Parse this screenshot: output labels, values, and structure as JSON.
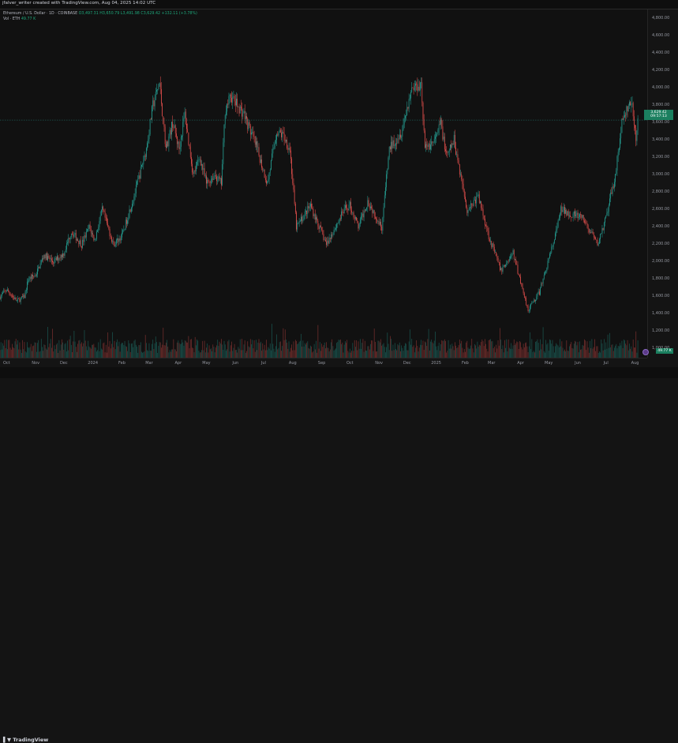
{
  "header": {
    "attribution": "jfalver_writer created with TradingView.com, Aug 04, 2025 14:02 UTC"
  },
  "legend": {
    "symbol": "Ethereum / U.S. Dollar · 1D · COINBASE",
    "ohlc": "O3,497.31 H3,650.79 L3,491.98 C3,629.42 +132.11 (+3.78%)",
    "volume_label": "Vol · ETH",
    "volume_value": "49.77 K"
  },
  "price_badge": {
    "price": "3,629.42",
    "countdown": "09:57:13"
  },
  "volume_badge": "49.77 K",
  "footer": {
    "logo": "TradingView"
  },
  "colors": {
    "up": "#26a69a",
    "down": "#ef5350",
    "badge": "#1b7f5f"
  },
  "chart_data": {
    "type": "candlestick",
    "symbol": "ETHUSD",
    "interval": "1D",
    "price_ylim": [
      900,
      4900
    ],
    "yticks": [
      1000,
      1200,
      1400,
      1600,
      1800,
      2000,
      2200,
      2400,
      2600,
      2800,
      3000,
      3200,
      3400,
      3600,
      3800,
      4000,
      4200,
      4400,
      4600,
      4800
    ],
    "ytick_labels": [
      "1,000.00",
      "1,200.00",
      "1,400.00",
      "1,600.00",
      "1,800.00",
      "2,000.00",
      "2,200.00",
      "2,400.00",
      "2,600.00",
      "2,800.00",
      "3,000.00",
      "3,200.00",
      "3,400.00",
      "3,600.00",
      "3,800.00",
      "4,000.00",
      "4,200.00",
      "4,400.00",
      "4,600.00",
      "4,800.00"
    ],
    "xtick_labels": [
      "Oct",
      "Nov",
      "Dec",
      "2024",
      "Feb",
      "Mar",
      "Apr",
      "May",
      "Jun",
      "Jul",
      "Aug",
      "Sep",
      "Oct",
      "Nov",
      "Dec",
      "2025",
      "Feb",
      "Mar",
      "Apr",
      "May",
      "Jun",
      "Jul",
      "Aug"
    ],
    "x_start": "2023-09-24",
    "x_end": "2025-08-14",
    "price_path": [
      [
        "2023-09-24",
        1600
      ],
      [
        "2023-10-01",
        1680
      ],
      [
        "2023-10-12",
        1550
      ],
      [
        "2023-10-20",
        1600
      ],
      [
        "2023-10-24",
        1800
      ],
      [
        "2023-11-01",
        1850
      ],
      [
        "2023-11-10",
        2080
      ],
      [
        "2023-11-20",
        2000
      ],
      [
        "2023-12-01",
        2100
      ],
      [
        "2023-12-09",
        2350
      ],
      [
        "2023-12-20",
        2200
      ],
      [
        "2023-12-28",
        2400
      ],
      [
        "2024-01-03",
        2250
      ],
      [
        "2024-01-11",
        2600
      ],
      [
        "2024-01-23",
        2200
      ],
      [
        "2024-02-01",
        2300
      ],
      [
        "2024-02-15",
        2800
      ],
      [
        "2024-02-27",
        3300
      ],
      [
        "2024-03-05",
        3800
      ],
      [
        "2024-03-12",
        4050
      ],
      [
        "2024-03-19",
        3300
      ],
      [
        "2024-03-26",
        3600
      ],
      [
        "2024-04-02",
        3300
      ],
      [
        "2024-04-08",
        3700
      ],
      [
        "2024-04-17",
        3000
      ],
      [
        "2024-04-24",
        3200
      ],
      [
        "2024-05-01",
        2900
      ],
      [
        "2024-05-10",
        3000
      ],
      [
        "2024-05-17",
        2900
      ],
      [
        "2024-05-21",
        3750
      ],
      [
        "2024-05-27",
        3900
      ],
      [
        "2024-06-10",
        3700
      ],
      [
        "2024-06-24",
        3300
      ],
      [
        "2024-07-05",
        2900
      ],
      [
        "2024-07-15",
        3500
      ],
      [
        "2024-07-22",
        3450
      ],
      [
        "2024-07-29",
        3300
      ],
      [
        "2024-08-05",
        2400
      ],
      [
        "2024-08-20",
        2650
      ],
      [
        "2024-09-06",
        2200
      ],
      [
        "2024-09-25",
        2600
      ],
      [
        "2024-10-01",
        2650
      ],
      [
        "2024-10-10",
        2400
      ],
      [
        "2024-10-20",
        2700
      ],
      [
        "2024-11-04",
        2400
      ],
      [
        "2024-11-12",
        3300
      ],
      [
        "2024-11-25",
        3500
      ],
      [
        "2024-12-06",
        4000
      ],
      [
        "2024-12-16",
        4050
      ],
      [
        "2024-12-20",
        3300
      ],
      [
        "2024-12-31",
        3400
      ],
      [
        "2025-01-06",
        3600
      ],
      [
        "2025-01-12",
        3200
      ],
      [
        "2025-01-20",
        3400
      ],
      [
        "2025-02-03",
        2600
      ],
      [
        "2025-02-15",
        2750
      ],
      [
        "2025-02-26",
        2300
      ],
      [
        "2025-03-11",
        1900
      ],
      [
        "2025-03-24",
        2100
      ],
      [
        "2025-04-09",
        1450
      ],
      [
        "2025-04-21",
        1650
      ],
      [
        "2025-05-08",
        2300
      ],
      [
        "2025-05-14",
        2600
      ],
      [
        "2025-06-06",
        2500
      ],
      [
        "2025-06-22",
        2200
      ],
      [
        "2025-07-01",
        2500
      ],
      [
        "2025-07-11",
        3000
      ],
      [
        "2025-07-18",
        3600
      ],
      [
        "2025-07-28",
        3850
      ],
      [
        "2025-08-02",
        3400
      ],
      [
        "2025-08-04",
        3629.42
      ]
    ],
    "volume": {
      "label": "Vol · ETH",
      "last": "49.77 K"
    }
  }
}
